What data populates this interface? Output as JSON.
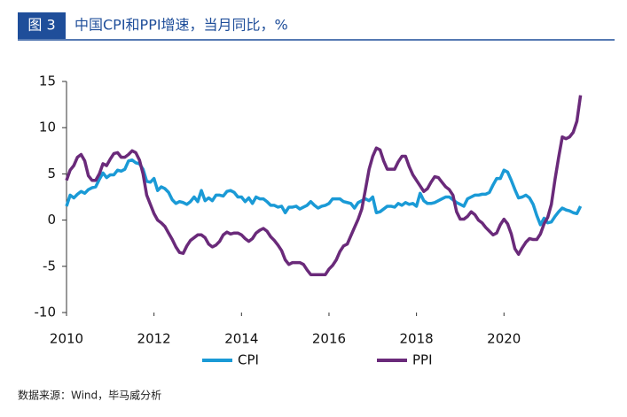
{
  "chart_data": {
    "type": "line",
    "badge": "图 3",
    "title": "中国CPI和PPI增速，当月同比，%",
    "source": "数据来源：Wind，毕马威分析",
    "x": [
      2010,
      2010.083,
      2010.167,
      2010.25,
      2010.333,
      2010.417,
      2010.5,
      2010.583,
      2010.667,
      2010.75,
      2010.833,
      2010.917,
      2011,
      2011.083,
      2011.167,
      2011.25,
      2011.333,
      2011.417,
      2011.5,
      2011.583,
      2011.667,
      2011.75,
      2011.833,
      2011.917,
      2012,
      2012.083,
      2012.167,
      2012.25,
      2012.333,
      2012.417,
      2012.5,
      2012.583,
      2012.667,
      2012.75,
      2012.833,
      2012.917,
      2013,
      2013.083,
      2013.167,
      2013.25,
      2013.333,
      2013.417,
      2013.5,
      2013.583,
      2013.667,
      2013.75,
      2013.833,
      2013.917,
      2014,
      2014.083,
      2014.167,
      2014.25,
      2014.333,
      2014.417,
      2014.5,
      2014.583,
      2014.667,
      2014.75,
      2014.833,
      2014.917,
      2015,
      2015.083,
      2015.167,
      2015.25,
      2015.333,
      2015.417,
      2015.5,
      2015.583,
      2015.667,
      2015.75,
      2015.833,
      2015.917,
      2016,
      2016.083,
      2016.167,
      2016.25,
      2016.333,
      2016.417,
      2016.5,
      2016.583,
      2016.667,
      2016.75,
      2016.833,
      2016.917,
      2017,
      2017.083,
      2017.167,
      2017.25,
      2017.333,
      2017.417,
      2017.5,
      2017.583,
      2017.667,
      2017.75,
      2017.833,
      2017.917,
      2018,
      2018.083,
      2018.167,
      2018.25,
      2018.333,
      2018.417,
      2018.5,
      2018.583,
      2018.667,
      2018.75,
      2018.833,
      2018.917,
      2019,
      2019.083,
      2019.167,
      2019.25,
      2019.333,
      2019.417,
      2019.5,
      2019.583,
      2019.667,
      2019.75,
      2019.833,
      2019.917,
      2020,
      2020.083,
      2020.167,
      2020.25,
      2020.333,
      2020.417,
      2020.5,
      2020.583,
      2020.667,
      2020.75,
      2020.833,
      2020.917,
      2021,
      2021.083,
      2021.167,
      2021.25,
      2021.333,
      2021.417,
      2021.5,
      2021.583,
      2021.667,
      2021.75
    ],
    "series": [
      {
        "name": "CPI",
        "color": "#1a9ad6",
        "values": [
          1.5,
          2.7,
          2.4,
          2.8,
          3.1,
          2.9,
          3.3,
          3.5,
          3.6,
          4.4,
          5.1,
          4.6,
          4.9,
          4.9,
          5.4,
          5.3,
          5.5,
          6.4,
          6.5,
          6.2,
          6.1,
          5.5,
          4.2,
          4.1,
          4.5,
          3.2,
          3.6,
          3.4,
          3.0,
          2.2,
          1.8,
          2.0,
          1.9,
          1.7,
          2.0,
          2.5,
          2.0,
          3.2,
          2.1,
          2.4,
          2.1,
          2.7,
          2.7,
          2.6,
          3.1,
          3.2,
          3.0,
          2.5,
          2.5,
          2.0,
          2.4,
          1.8,
          2.5,
          2.3,
          2.3,
          2.0,
          1.6,
          1.6,
          1.4,
          1.5,
          0.8,
          1.4,
          1.4,
          1.5,
          1.2,
          1.4,
          1.6,
          2.0,
          1.6,
          1.3,
          1.5,
          1.6,
          1.8,
          2.3,
          2.3,
          2.3,
          2.0,
          1.9,
          1.8,
          1.3,
          1.9,
          2.1,
          2.3,
          2.1,
          2.5,
          0.8,
          0.9,
          1.2,
          1.5,
          1.5,
          1.4,
          1.8,
          1.6,
          1.9,
          1.7,
          1.8,
          1.5,
          2.9,
          2.1,
          1.8,
          1.8,
          1.9,
          2.1,
          2.3,
          2.5,
          2.5,
          2.2,
          1.9,
          1.7,
          1.5,
          2.3,
          2.5,
          2.7,
          2.7,
          2.8,
          2.8,
          3.0,
          3.8,
          4.5,
          4.5,
          5.4,
          5.2,
          4.3,
          3.3,
          2.4,
          2.5,
          2.7,
          2.4,
          1.7,
          0.5,
          -0.5,
          0.2,
          -0.3,
          -0.2,
          0.4,
          0.9,
          1.3,
          1.1,
          1.0,
          0.8,
          0.7,
          1.5
        ]
      },
      {
        "name": "PPI",
        "color": "#6a2a7a",
        "values": [
          4.3,
          5.4,
          5.9,
          6.8,
          7.1,
          6.4,
          4.8,
          4.3,
          4.3,
          5.0,
          6.1,
          5.9,
          6.6,
          7.2,
          7.3,
          6.8,
          6.8,
          7.1,
          7.5,
          7.3,
          6.5,
          5.0,
          2.7,
          1.7,
          0.7,
          0.0,
          -0.3,
          -0.7,
          -1.4,
          -2.1,
          -2.9,
          -3.5,
          -3.6,
          -2.8,
          -2.2,
          -1.9,
          -1.6,
          -1.6,
          -1.9,
          -2.6,
          -2.9,
          -2.7,
          -2.3,
          -1.6,
          -1.3,
          -1.5,
          -1.4,
          -1.4,
          -1.6,
          -2.0,
          -2.3,
          -2.0,
          -1.4,
          -1.1,
          -0.9,
          -1.2,
          -1.8,
          -2.2,
          -2.7,
          -3.3,
          -4.3,
          -4.8,
          -4.6,
          -4.6,
          -4.6,
          -4.8,
          -5.4,
          -5.9,
          -5.9,
          -5.9,
          -5.9,
          -5.9,
          -5.3,
          -4.9,
          -4.3,
          -3.4,
          -2.8,
          -2.6,
          -1.7,
          -0.8,
          0.1,
          1.2,
          3.3,
          5.5,
          6.9,
          7.8,
          7.6,
          6.4,
          5.5,
          5.5,
          5.5,
          6.3,
          6.9,
          6.9,
          5.8,
          4.9,
          4.3,
          3.7,
          3.1,
          3.4,
          4.1,
          4.7,
          4.6,
          4.1,
          3.6,
          3.3,
          2.7,
          0.9,
          0.1,
          0.1,
          0.4,
          0.9,
          0.6,
          0.0,
          -0.3,
          -0.8,
          -1.2,
          -1.6,
          -1.4,
          -0.5,
          0.1,
          -0.4,
          -1.5,
          -3.1,
          -3.7,
          -3.0,
          -2.4,
          -2.0,
          -2.1,
          -2.1,
          -1.5,
          -0.4,
          0.3,
          1.7,
          4.4,
          6.8,
          9.0,
          8.8,
          9.0,
          9.5,
          10.7,
          13.5
        ]
      }
    ],
    "xlim": [
      2010,
      2021.9
    ],
    "xticks": [
      2010,
      2012,
      2014,
      2016,
      2018,
      2020
    ],
    "ylim": [
      -10,
      15
    ],
    "yticks": [
      -10,
      -5,
      0,
      5,
      10,
      15
    ],
    "legend": "bottom"
  }
}
